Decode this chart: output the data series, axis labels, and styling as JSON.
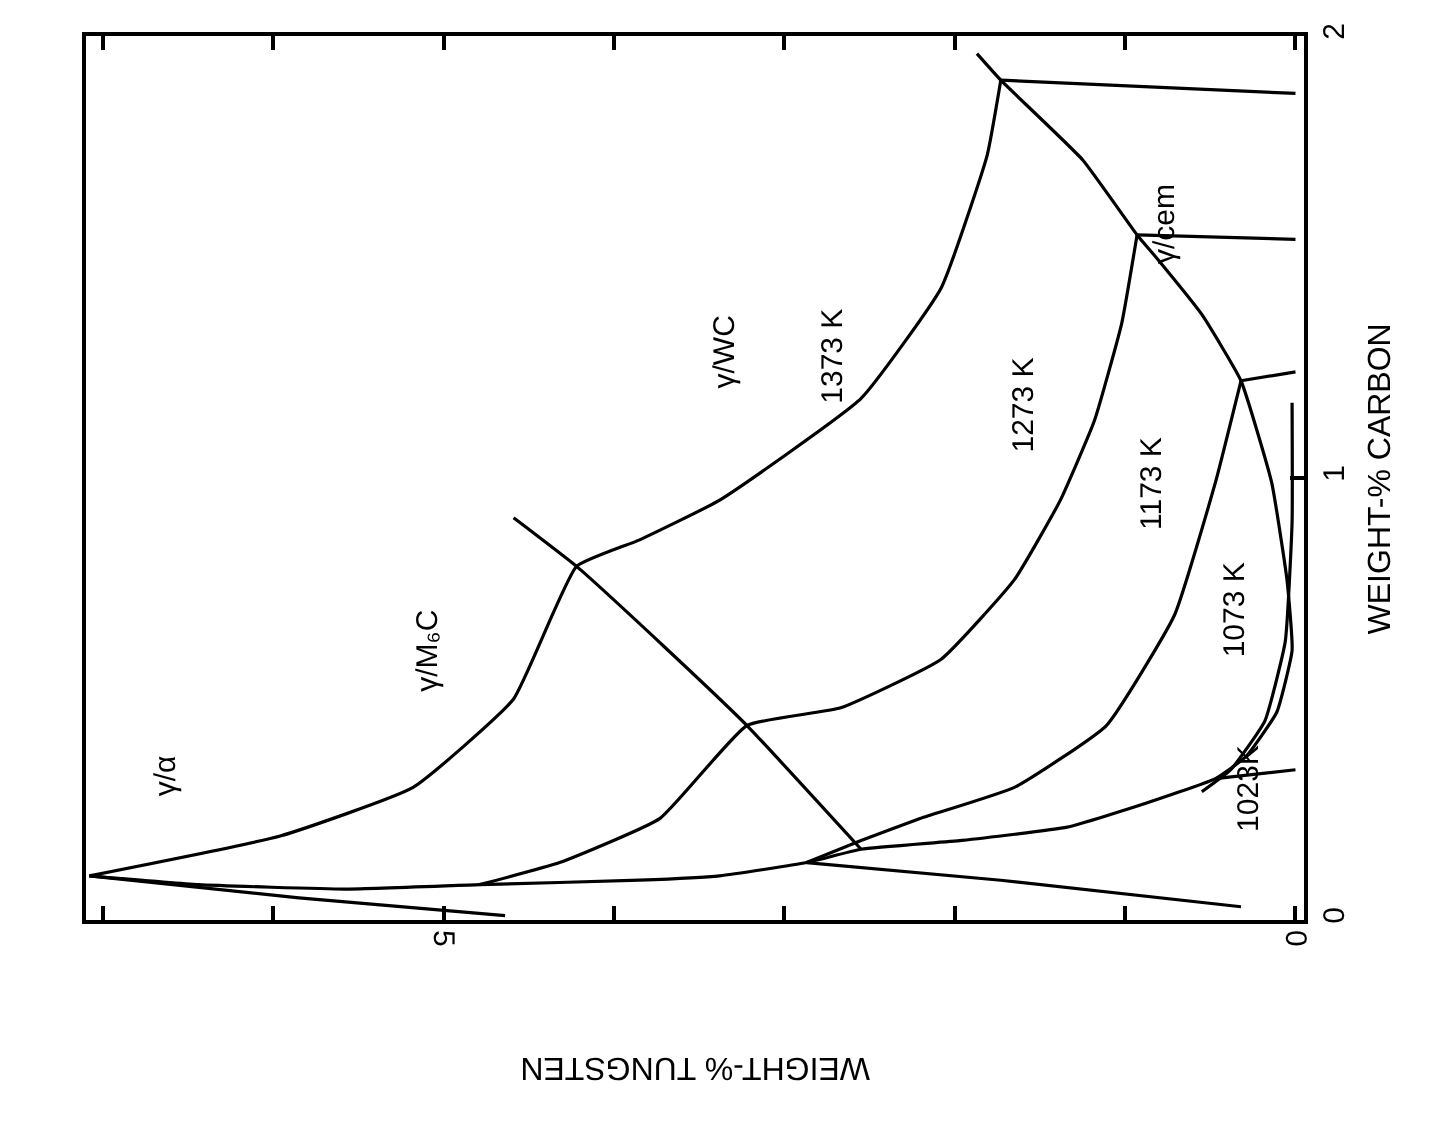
{
  "chart_data": {
    "type": "line",
    "xlabel": "WEIGHT-% TUNGSTEN",
    "ylabel": "WEIGHT-% CARBON",
    "xlim": [
      7.1,
      -0.05
    ],
    "ylim": [
      0,
      2
    ],
    "xticks": [
      {
        "value": 7,
        "label": null
      },
      {
        "value": 6,
        "label": null
      },
      5,
      {
        "value": 4,
        "label": null
      },
      {
        "value": 3,
        "label": null
      },
      {
        "value": 2,
        "label": null
      },
      {
        "value": 1,
        "label": null
      },
      0
    ],
    "yticks": [
      0,
      1,
      2
    ],
    "marker": "none",
    "line_style": "solid",
    "series": [
      {
        "color": "#000000",
        "x": [
          1.87,
          1.73,
          1.25,
          0.93,
          0.82,
          0.55,
          0.32,
          0.14,
          0.05,
          0.02,
          0.11,
          0.29,
          0.47,
          0.91,
          1.34,
          1.96,
          2.55,
          2.87,
          3.38,
          3.85,
          4.79,
          5.58,
          6.44,
          7.08
        ],
        "values": [
          1.96,
          1.9,
          1.72,
          1.55,
          1.5,
          1.37,
          1.22,
          0.99,
          0.77,
          0.61,
          0.47,
          0.37,
          0.32,
          0.26,
          0.21,
          0.18,
          0.16,
          0.13,
          0.1,
          0.09,
          0.08,
          0.07,
          0.08,
          0.1
        ]
      },
      {
        "color": "#000000",
        "x": [
          4.59,
          4.22,
          3.71,
          3.22,
          2.55
        ],
        "values": [
          0.91,
          0.8,
          0.62,
          0.44,
          0.16
        ]
      },
      {
        "color": "#000000",
        "x": [
          1.73,
          1.81,
          2.08,
          2.55,
          3.38,
          3.85,
          4.22,
          4.59,
          5.18,
          5.96,
          7.08
        ],
        "values": [
          1.9,
          1.73,
          1.43,
          1.18,
          0.95,
          0.86,
          0.8,
          0.5,
          0.3,
          0.19,
          0.1
        ]
      },
      {
        "color": "#000000",
        "x": [
          0.93,
          1.02,
          1.18,
          1.38,
          1.65,
          2.08,
          2.67,
          3.22,
          3.73,
          4.32,
          4.79
        ],
        "values": [
          1.55,
          1.35,
          1.13,
          0.95,
          0.77,
          0.59,
          0.48,
          0.44,
          0.23,
          0.13,
          0.08
        ]
      },
      {
        "color": "#000000",
        "x": [
          0.32,
          0.47,
          0.71,
          1.11,
          1.65,
          2.2,
          2.55,
          2.87
        ],
        "values": [
          1.22,
          0.99,
          0.69,
          0.44,
          0.3,
          0.23,
          0.18,
          0.13
        ]
      },
      {
        "color": "#000000",
        "x": [
          0.02,
          0.02,
          0.06,
          0.18,
          0.38,
          0.55
        ],
        "values": [
          1.17,
          0.9,
          0.63,
          0.45,
          0.34,
          0.29
        ]
      },
      {
        "color": "#000000",
        "x": [
          7.08,
          5.85,
          4.64
        ],
        "values": [
          0.1,
          0.05,
          0.01
        ]
      },
      {
        "color": "#000000",
        "x": [
          2.87,
          1.73,
          0.32
        ],
        "values": [
          0.13,
          0.09,
          0.03
        ]
      },
      {
        "color": "#000000",
        "x": [
          1.73,
          0
        ],
        "values": [
          1.9,
          1.87
        ]
      },
      {
        "color": "#000000",
        "x": [
          0.93,
          0
        ],
        "values": [
          1.55,
          1.54
        ]
      },
      {
        "color": "#000000",
        "x": [
          0.32,
          0
        ],
        "values": [
          1.22,
          1.24
        ]
      },
      {
        "color": "#000000",
        "x": [
          0.47,
          0
        ],
        "values": [
          0.32,
          0.34
        ]
      }
    ],
    "annotations": [
      "γ/α",
      "γ/M₆C",
      "γ/WC",
      "1373 K",
      "1273 K",
      "γ/cem",
      "1173 K",
      "1073 K",
      "1023K"
    ]
  }
}
